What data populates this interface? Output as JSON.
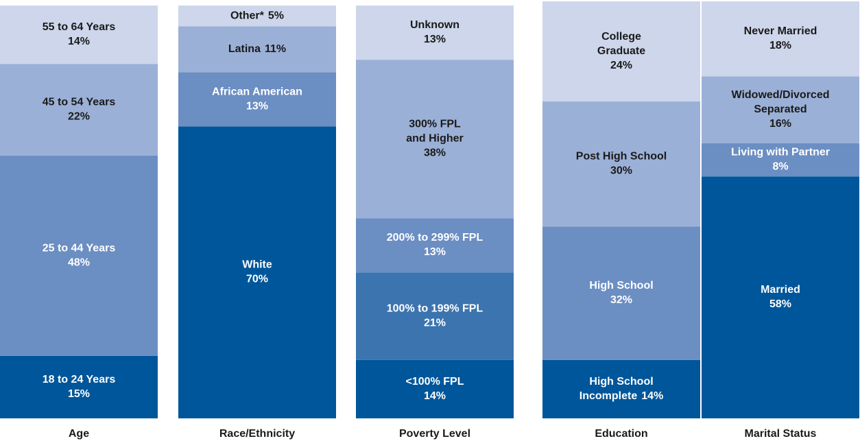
{
  "chart_data": [
    {
      "type": "stacked-column",
      "title": "Age",
      "categories": [
        [
          "18 to 24 Years"
        ],
        [
          "25 to 44 Years"
        ],
        [
          "45 to 54 Years"
        ],
        [
          "55 to 64 Years"
        ]
      ],
      "values": [
        15,
        48,
        22,
        14
      ],
      "value_labels": [
        "15%",
        "48%",
        "22%",
        "14%"
      ],
      "colors": [
        "#00569a",
        "#6b8ec3",
        "#9bb0d6",
        "#cdd6ea"
      ],
      "ylim": [
        0,
        100
      ]
    },
    {
      "type": "stacked-column",
      "title": "Race/Ethnicity",
      "categories": [
        [
          "White"
        ],
        [
          "African American"
        ],
        [
          "Latina"
        ],
        [
          "Other*"
        ]
      ],
      "values": [
        70,
        13,
        11,
        5
      ],
      "value_labels": [
        "70%",
        "13%",
        "11%",
        "5%"
      ],
      "colors": [
        "#00569a",
        "#6b8ec3",
        "#9bb0d6",
        "#cdd6ea"
      ],
      "ylim": [
        0,
        100
      ]
    },
    {
      "type": "stacked-column",
      "title": "Poverty Level",
      "categories": [
        [
          "<100% FPL"
        ],
        [
          "100% to 199% FPL"
        ],
        [
          "200% to 299% FPL"
        ],
        [
          "300% FPL",
          "and Higher"
        ],
        [
          "Unknown"
        ]
      ],
      "values": [
        14,
        21,
        13,
        38,
        13
      ],
      "value_labels": [
        "14%",
        "21%",
        "13%",
        "38%",
        "13%"
      ],
      "colors": [
        "#00569a",
        "#3b74ae",
        "#6b8ec3",
        "#9bb0d6",
        "#cdd6ea"
      ],
      "ylim": [
        0,
        100
      ]
    },
    {
      "type": "stacked-column",
      "title": "Education",
      "categories": [
        [
          "High School",
          "Incomplete"
        ],
        [
          "High School"
        ],
        [
          "Post High School"
        ],
        [
          "College",
          "Graduate"
        ]
      ],
      "values": [
        14,
        32,
        30,
        24
      ],
      "value_labels": [
        "14%",
        "32%",
        "30%",
        "24%"
      ],
      "colors": [
        "#00569a",
        "#6b8ec3",
        "#9bb0d6",
        "#cdd6ea"
      ],
      "ylim": [
        0,
        100
      ]
    },
    {
      "type": "stacked-column",
      "title": "Marital Status",
      "categories": [
        [
          "Married"
        ],
        [
          "Living with Partner"
        ],
        [
          "Widowed/Divorced",
          "Separated"
        ],
        [
          "Never Married"
        ]
      ],
      "values": [
        58,
        8,
        16,
        18
      ],
      "value_labels": [
        "58%",
        "8%",
        "16%",
        "18%"
      ],
      "colors": [
        "#00569a",
        "#6b8ec3",
        "#9bb0d6",
        "#cdd6ea"
      ],
      "ylim": [
        0,
        100
      ]
    }
  ]
}
